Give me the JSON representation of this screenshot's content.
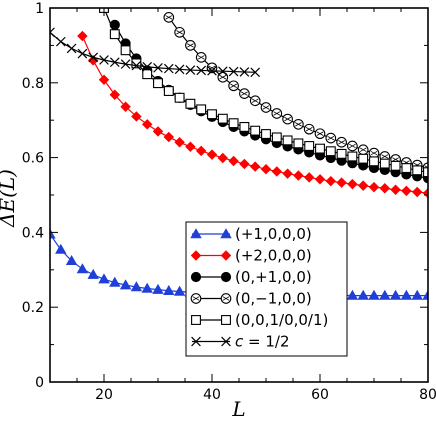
{
  "chart_data": {
    "type": "line",
    "xlabel": "L",
    "ylabel": "ΔE(L)",
    "xlim": [
      10,
      80
    ],
    "ylim": [
      0,
      1
    ],
    "x_ticks": [
      20,
      40,
      60,
      80
    ],
    "y_ticks": [
      0,
      0.2,
      0.4,
      0.6,
      0.8,
      1
    ],
    "x_tick_labels": [
      "20",
      "40",
      "60",
      "80"
    ],
    "y_tick_labels": [
      "0",
      "0.2",
      "0.4",
      "0.6",
      "0.8",
      "1"
    ],
    "legend_position": "bottom-center",
    "series": [
      {
        "name": "(+1,0,0,0)",
        "color": "#1f3fd8",
        "marker": "triangle",
        "x": [
          10,
          12,
          14,
          16,
          18,
          20,
          22,
          24,
          26,
          28,
          30,
          32,
          34,
          36,
          38,
          40,
          42,
          44,
          46,
          48,
          50,
          52,
          54,
          56,
          58,
          60,
          62,
          64,
          66,
          68,
          70,
          72,
          74,
          76,
          78,
          80
        ],
        "y": [
          0.395,
          0.354,
          0.324,
          0.302,
          0.287,
          0.275,
          0.266,
          0.259,
          0.254,
          0.25,
          0.247,
          0.244,
          0.242,
          0.24,
          0.238,
          0.237,
          0.236,
          0.235,
          0.234,
          0.234,
          0.233,
          0.233,
          0.233,
          0.232,
          0.232,
          0.232,
          0.232,
          0.232,
          0.231,
          0.231,
          0.231,
          0.231,
          0.231,
          0.231,
          0.231,
          0.231
        ]
      },
      {
        "name": "(+2,0,0,0)",
        "color": "#ff0000",
        "marker": "diamond",
        "x": [
          16,
          18,
          20,
          22,
          24,
          26,
          28,
          30,
          32,
          34,
          36,
          38,
          40,
          42,
          44,
          46,
          48,
          50,
          52,
          54,
          56,
          58,
          60,
          62,
          64,
          66,
          68,
          70,
          72,
          74,
          76,
          78,
          80
        ],
        "y": [
          0.925,
          0.86,
          0.808,
          0.768,
          0.736,
          0.71,
          0.689,
          0.67,
          0.655,
          0.641,
          0.629,
          0.618,
          0.608,
          0.599,
          0.591,
          0.583,
          0.576,
          0.569,
          0.563,
          0.557,
          0.552,
          0.547,
          0.542,
          0.537,
          0.533,
          0.529,
          0.525,
          0.521,
          0.518,
          0.514,
          0.511,
          0.508,
          0.505
        ]
      },
      {
        "name": "(0,+1,0,0)",
        "color": "#000000",
        "marker": "filled-circle",
        "x": [
          22,
          24,
          26,
          28,
          30,
          32,
          34,
          36,
          38,
          40,
          42,
          44,
          46,
          48,
          50,
          52,
          54,
          56,
          58,
          60,
          62,
          64,
          66,
          68,
          70,
          72,
          74,
          76,
          78,
          80
        ],
        "y": [
          0.955,
          0.905,
          0.865,
          0.833,
          0.805,
          0.781,
          0.76,
          0.741,
          0.724,
          0.709,
          0.695,
          0.682,
          0.67,
          0.659,
          0.649,
          0.639,
          0.63,
          0.622,
          0.614,
          0.606,
          0.599,
          0.592,
          0.585,
          0.579,
          0.572,
          0.567,
          0.561,
          0.555,
          0.55,
          0.545
        ]
      },
      {
        "name": "(0,−1,0,0)",
        "color": "#000000",
        "marker": "open-circle",
        "x": [
          32,
          34,
          36,
          38,
          40,
          42,
          44,
          46,
          48,
          50,
          52,
          54,
          56,
          58,
          60,
          62,
          64,
          66,
          68,
          70,
          72,
          74,
          76,
          78,
          80
        ],
        "y": [
          0.975,
          0.935,
          0.9,
          0.868,
          0.84,
          0.815,
          0.792,
          0.771,
          0.752,
          0.734,
          0.718,
          0.703,
          0.689,
          0.676,
          0.664,
          0.652,
          0.641,
          0.631,
          0.621,
          0.612,
          0.603,
          0.595,
          0.587,
          0.58,
          0.573
        ]
      },
      {
        "name": "(0,0,1/0,0/1)",
        "color": "#000000",
        "marker": "open-square",
        "x": [
          20,
          22,
          24,
          26,
          28,
          30,
          32,
          34,
          36,
          38,
          40,
          42,
          44,
          46,
          48,
          50,
          52,
          54,
          56,
          58,
          60,
          62,
          64,
          66,
          68,
          70,
          72,
          74,
          76,
          78,
          80
        ],
        "y": [
          1.0,
          0.93,
          0.887,
          0.852,
          0.823,
          0.799,
          0.778,
          0.76,
          0.744,
          0.729,
          0.716,
          0.704,
          0.692,
          0.682,
          0.672,
          0.663,
          0.654,
          0.646,
          0.638,
          0.631,
          0.624,
          0.617,
          0.61,
          0.603,
          0.597,
          0.59,
          0.584,
          0.578,
          0.572,
          0.566,
          0.561
        ]
      },
      {
        "name": "c = 1/2",
        "color": "#000000",
        "marker": "cross",
        "x": [
          10,
          12,
          14,
          16,
          18,
          20,
          22,
          24,
          26,
          28,
          30,
          32,
          34,
          36,
          38,
          40,
          42,
          44,
          46,
          48
        ],
        "y": [
          0.935,
          0.91,
          0.892,
          0.878,
          0.868,
          0.861,
          0.855,
          0.85,
          0.846,
          0.843,
          0.84,
          0.838,
          0.836,
          0.834,
          0.833,
          0.832,
          0.831,
          0.83,
          0.829,
          0.828
        ]
      }
    ]
  }
}
